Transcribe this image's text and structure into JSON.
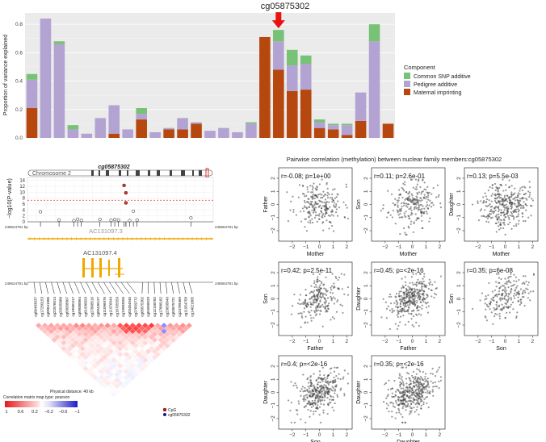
{
  "chart_data": [
    {
      "type": "bar",
      "stacked": true,
      "title": "cg05875302",
      "ylabel": "Proportion of variance explained",
      "xlabel": "",
      "ylim": [
        0,
        0.88
      ],
      "yticks": [
        0,
        0.2,
        0.4,
        0.6,
        0.8
      ],
      "ytick_labels": [
        "0.0",
        "0.2",
        "0.4",
        "0.6",
        "0.8"
      ],
      "legend": {
        "title": "Component",
        "placement": "right",
        "entries": [
          "Common SNP additive",
          "Pedigree additive",
          "Maternal imprinting"
        ]
      },
      "series": [
        {
          "name": "Maternal imprinting",
          "color": "#b5470f",
          "values": [
            0.21,
            0,
            0,
            0,
            0,
            0,
            0.03,
            0,
            0.13,
            0,
            0.06,
            0.06,
            0.1,
            0,
            0,
            0,
            0,
            0.71,
            0.48,
            0.33,
            0.34,
            0.07,
            0.06,
            0.02,
            0.12,
            0,
            0.1
          ]
        },
        {
          "name": "Pedigree additive",
          "color": "#b3a3d3",
          "values": [
            0.2,
            0.84,
            0.66,
            0.06,
            0.03,
            0.14,
            0.2,
            0.06,
            0.04,
            0.04,
            0.01,
            0.08,
            0.01,
            0.05,
            0.07,
            0.04,
            0.1,
            0,
            0.2,
            0.18,
            0.18,
            0.04,
            0.03,
            0.07,
            0.2,
            0.68,
            0
          ]
        },
        {
          "name": "Common SNP additive",
          "color": "#77c276",
          "values": [
            0.04,
            0,
            0.02,
            0.03,
            0,
            0,
            0,
            0,
            0.04,
            0,
            0,
            0,
            0,
            0,
            0,
            0,
            0.01,
            0,
            0.08,
            0.11,
            0.06,
            0.02,
            0.01,
            0.01,
            0,
            0.12,
            0
          ]
        }
      ],
      "highlight_index": 18
    },
    {
      "type": "scatter",
      "title": "Pairwise correlation (methylation) between nuclear family members:cg05875302",
      "xlim": [
        -3,
        2.4
      ],
      "ylim": [
        -2.8,
        2.8
      ],
      "ticks": [
        -2,
        -1,
        0,
        1,
        2
      ],
      "tick_labels": [
        "−2",
        "−1",
        "0",
        "1",
        "2"
      ],
      "panels": [
        {
          "xlabel": "Mother",
          "ylabel": "Father",
          "r": "r=-0.08; p=1e+00",
          "corr": -0.08,
          "n": 230,
          "seed": 11
        },
        {
          "xlabel": "Mother",
          "ylabel": "Son",
          "r": "r=0.11; p=2.6e-01",
          "corr": 0.11,
          "n": 230,
          "seed": 23
        },
        {
          "xlabel": "Mother",
          "ylabel": "Daughter",
          "r": "r=0.13; p=5.5e-03",
          "corr": 0.13,
          "n": 330,
          "seed": 37
        },
        {
          "xlabel": "Father",
          "ylabel": "Son",
          "r": "r=0.42; p=2.5e-11",
          "corr": 0.42,
          "n": 230,
          "seed": 41
        },
        {
          "xlabel": "Father",
          "ylabel": "Daughter",
          "r": "r=0.45; p=<2e-16",
          "corr": 0.45,
          "n": 330,
          "seed": 53
        },
        {
          "xlabel": "Son",
          "ylabel": "Son",
          "r": "r=0.35; p=6e-08",
          "corr": 0.35,
          "n": 200,
          "seed": 67
        },
        {
          "xlabel": "Son",
          "ylabel": "Daughter",
          "r": "r=0.4; p=<2e-16",
          "corr": 0.4,
          "n": 330,
          "seed": 71
        },
        {
          "xlabel": "Daughter",
          "ylabel": "Daughter",
          "r": "r=0.35; p=<2e-16",
          "corr": 0.35,
          "n": 380,
          "seed": 89
        }
      ]
    },
    {
      "type": "scatter",
      "title": "cg05875302",
      "chromosome_label": "Chromosome 2",
      "ylabel": "−log10(P-value)",
      "yticks": [
        0,
        2,
        4,
        6,
        8,
        10,
        12,
        14
      ],
      "ylim": [
        0,
        15
      ],
      "threshold": 7.3,
      "points": [
        {
          "x": 0.07,
          "y": 3.4,
          "type": "open"
        },
        {
          "x": 0.17,
          "y": 0.6,
          "type": "open"
        },
        {
          "x": 0.25,
          "y": 0.4,
          "type": "open"
        },
        {
          "x": 0.27,
          "y": 0.9,
          "type": "open"
        },
        {
          "x": 0.29,
          "y": 0.5,
          "type": "open"
        },
        {
          "x": 0.39,
          "y": 0.8,
          "type": "open"
        },
        {
          "x": 0.45,
          "y": 0.5,
          "type": "open"
        },
        {
          "x": 0.47,
          "y": 0.8,
          "type": "open"
        },
        {
          "x": 0.49,
          "y": 0.6,
          "type": "open"
        },
        {
          "x": 0.55,
          "y": 0.4,
          "type": "open"
        },
        {
          "x": 0.59,
          "y": 0.6,
          "type": "open"
        },
        {
          "x": 0.57,
          "y": 3.6,
          "type": "open"
        },
        {
          "x": 0.52,
          "y": 12.3,
          "type": "cpg"
        },
        {
          "x": 0.53,
          "y": 9.8,
          "type": "cpg"
        },
        {
          "x": 0.53,
          "y": 6.4,
          "type": "cpg"
        },
        {
          "x": 0.88,
          "y": 1.3,
          "type": "open"
        }
      ],
      "left_coordinate": "248524781 bp",
      "right_coordinate": "248564781 bp",
      "genes": [
        "AC131097.3",
        "AC131097.4"
      ],
      "probes": [
        "cg06403637",
        "cg17250153",
        "cg09841086",
        "cg22576014",
        "cg25035888",
        "cg03058007",
        "cg19660117",
        "cg09088864",
        "cg01936829",
        "cg27868516",
        "cg09436127",
        "cg11096976",
        "cg11976644",
        "cg10765559",
        "cg19983556",
        "cg03484946",
        "cg27659772",
        "cg05875302",
        "cg04958529",
        "cg12158782",
        "cg17888182",
        "cg23658049",
        "cg03675721",
        "cg24789469",
        "cg11954758",
        "cg14621805"
      ],
      "ld_legend": {
        "distance": "Physical distance: 40 kb",
        "matrix_type": "Correlation matrix map type: pearson",
        "scale_labels": [
          "1",
          "0.6",
          "0.2",
          "−0.2",
          "−0.6",
          "−1"
        ]
      },
      "point_legend": [
        "CpG",
        "cg05875302"
      ]
    }
  ]
}
